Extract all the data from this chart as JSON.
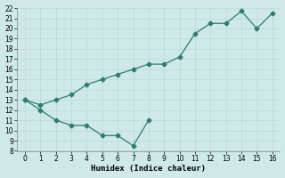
{
  "xlabel": "Humidex (Indice chaleur)",
  "ylabel": "",
  "background_color": "#cfe9e9",
  "grid_color": "#b8d8d8",
  "line_color": "#2e7d6e",
  "series1_x": [
    0,
    1,
    2,
    3,
    4,
    5,
    6,
    7,
    8
  ],
  "series1_y": [
    13.0,
    12.0,
    11.0,
    10.5,
    10.5,
    9.5,
    9.5,
    8.5,
    11.0
  ],
  "series2_x": [
    0,
    1,
    2,
    3,
    4,
    5,
    6,
    7,
    8,
    9,
    10,
    11,
    12,
    13,
    14,
    15,
    16
  ],
  "series2_y": [
    13.0,
    12.5,
    13.0,
    13.5,
    14.5,
    15.0,
    15.5,
    16.0,
    16.5,
    16.5,
    17.2,
    19.5,
    20.5,
    20.5,
    21.7,
    20.0,
    21.5
  ],
  "ylim": [
    8,
    22
  ],
  "xlim": [
    -0.5,
    16.5
  ],
  "yticks": [
    8,
    9,
    10,
    11,
    12,
    13,
    14,
    15,
    16,
    17,
    18,
    19,
    20,
    21,
    22
  ],
  "xticks": [
    0,
    1,
    2,
    3,
    4,
    5,
    6,
    7,
    8,
    9,
    10,
    11,
    12,
    13,
    14,
    15,
    16
  ]
}
